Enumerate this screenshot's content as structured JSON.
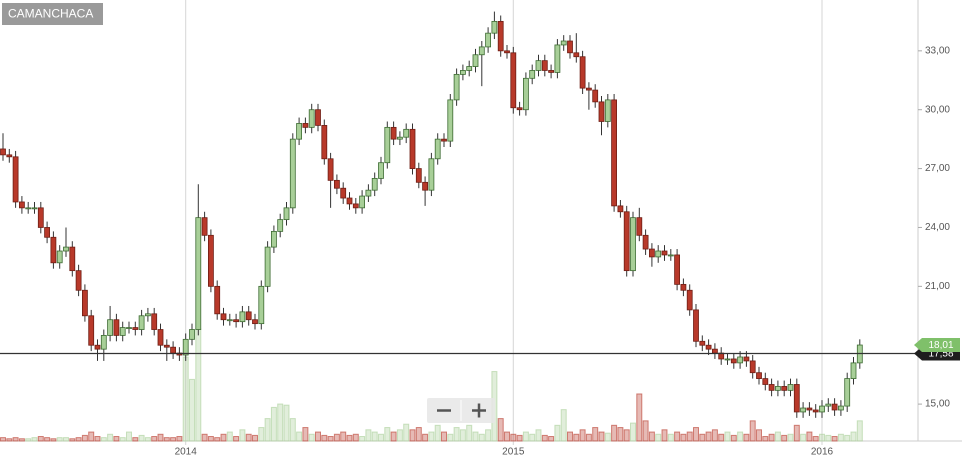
{
  "chart_data": {
    "type": "candlestick",
    "title": "CAMANCHACA",
    "categories": [
      null,
      null,
      null,
      null,
      null,
      null,
      null,
      null,
      null,
      null,
      null,
      null,
      null,
      null,
      null,
      null,
      null,
      null,
      null,
      null,
      null,
      null,
      null,
      null,
      null,
      null,
      null,
      null,
      null,
      "2014",
      null,
      null,
      null,
      null,
      null,
      null,
      null,
      null,
      null,
      null,
      null,
      null,
      null,
      null,
      null,
      null,
      null,
      null,
      null,
      null,
      null,
      null,
      null,
      null,
      null,
      null,
      null,
      null,
      null,
      null,
      null,
      null,
      null,
      null,
      null,
      null,
      null,
      null,
      null,
      null,
      null,
      null,
      null,
      null,
      null,
      null,
      null,
      null,
      null,
      null,
      null,
      "2015",
      null,
      null,
      null,
      null,
      null,
      null,
      null,
      null,
      null,
      null,
      null,
      null,
      null,
      null,
      null,
      null,
      null,
      null,
      null,
      null,
      null,
      null,
      null,
      null,
      null,
      null,
      null,
      null,
      null,
      null,
      null,
      null,
      null,
      null,
      null,
      null,
      null,
      null,
      null,
      null,
      null,
      null,
      null,
      null,
      null,
      null,
      null,
      null,
      "2016",
      null,
      null,
      null,
      null,
      null,
      null
    ],
    "open": [
      28.0,
      27.7,
      27.6,
      25.3,
      25.0,
      25.0,
      25.0,
      24.0,
      23.5,
      22.2,
      22.8,
      23.0,
      21.8,
      20.8,
      19.5,
      18.0,
      17.8,
      18.5,
      19.3,
      18.5,
      18.9,
      18.9,
      18.8,
      19.5,
      19.6,
      18.8,
      18.0,
      17.9,
      17.6,
      17.5,
      18.3,
      18.8,
      24.5,
      23.6,
      21.0,
      19.6,
      19.3,
      19.3,
      19.2,
      19.7,
      19.3,
      19.1,
      21.0,
      23.0,
      23.8,
      24.4,
      25.0,
      28.5,
      29.3,
      29.1,
      30.0,
      29.2,
      27.5,
      26.4,
      26.0,
      25.5,
      25.2,
      25.0,
      25.6,
      25.9,
      26.5,
      27.3,
      29.1,
      28.5,
      28.6,
      29.0,
      27.0,
      26.3,
      25.9,
      27.5,
      28.5,
      28.4,
      30.5,
      31.8,
      32.0,
      32.2,
      32.8,
      33.2,
      33.9,
      34.5,
      33.0,
      32.9,
      30.1,
      30.0,
      31.6,
      32.0,
      32.5,
      32.0,
      31.9,
      33.3,
      33.5,
      32.9,
      32.7,
      31.1,
      31.0,
      30.4,
      29.4,
      30.5,
      25.1,
      24.8,
      21.8,
      24.5,
      23.6,
      22.9,
      22.5,
      22.8,
      22.6,
      22.6,
      21.1,
      20.8,
      19.8,
      18.2,
      18.0,
      17.8,
      17.6,
      17.3,
      17.3,
      17.1,
      17.4,
      17.2,
      16.6,
      16.3,
      16.0,
      15.7,
      15.9,
      15.7,
      16.0,
      14.6,
      14.8,
      14.7,
      14.6,
      14.9,
      15.0,
      14.7,
      14.9,
      16.3,
      17.1
    ],
    "high": [
      28.8,
      28.0,
      27.9,
      25.6,
      25.3,
      25.3,
      25.3,
      24.3,
      23.8,
      23.1,
      24.0,
      23.3,
      22.1,
      21.1,
      19.8,
      18.3,
      18.8,
      20.0,
      19.6,
      19.2,
      19.2,
      19.2,
      19.8,
      19.9,
      19.9,
      19.1,
      18.3,
      18.2,
      17.9,
      18.6,
      19.1,
      26.2,
      24.8,
      23.9,
      21.3,
      19.9,
      19.6,
      19.6,
      20.0,
      20.0,
      19.6,
      21.3,
      23.3,
      24.1,
      24.7,
      25.3,
      28.8,
      29.6,
      29.6,
      30.3,
      30.3,
      29.5,
      27.8,
      26.7,
      26.3,
      25.8,
      25.5,
      25.9,
      26.2,
      26.8,
      27.6,
      29.4,
      29.4,
      28.9,
      29.3,
      29.3,
      27.3,
      26.6,
      27.8,
      28.8,
      28.8,
      30.8,
      32.1,
      32.3,
      32.5,
      33.1,
      33.5,
      34.2,
      35.0,
      34.8,
      33.3,
      33.2,
      30.4,
      31.9,
      32.3,
      32.8,
      32.8,
      32.3,
      33.6,
      33.8,
      33.8,
      33.9,
      33.0,
      31.4,
      31.3,
      30.7,
      30.8,
      30.8,
      25.4,
      25.1,
      24.8,
      25.0,
      23.9,
      23.2,
      23.1,
      23.1,
      22.9,
      22.9,
      21.4,
      21.1,
      20.1,
      18.5,
      18.3,
      18.1,
      17.9,
      17.6,
      17.6,
      17.7,
      17.7,
      17.5,
      16.9,
      16.6,
      16.3,
      16.2,
      16.2,
      16.3,
      16.3,
      15.1,
      15.1,
      15.0,
      15.2,
      15.3,
      15.3,
      15.2,
      16.6,
      17.4,
      18.3
    ],
    "low": [
      27.4,
      27.3,
      25.0,
      24.7,
      24.7,
      24.7,
      23.7,
      23.2,
      21.9,
      21.9,
      22.5,
      21.5,
      20.5,
      19.2,
      17.7,
      17.2,
      17.2,
      18.2,
      18.2,
      18.2,
      18.6,
      18.5,
      18.5,
      19.2,
      18.5,
      17.7,
      17.2,
      17.3,
      17.2,
      17.2,
      18.0,
      18.5,
      23.3,
      20.7,
      19.3,
      19.0,
      19.0,
      18.9,
      18.9,
      19.0,
      18.8,
      18.8,
      20.7,
      22.7,
      23.5,
      24.1,
      24.7,
      28.2,
      28.8,
      28.8,
      28.9,
      27.2,
      25.0,
      25.7,
      25.2,
      24.9,
      24.7,
      24.7,
      25.3,
      25.6,
      26.2,
      27.0,
      28.2,
      28.2,
      28.3,
      26.7,
      26.0,
      25.1,
      25.6,
      27.2,
      28.1,
      28.1,
      30.2,
      31.5,
      31.7,
      31.9,
      31.2,
      32.9,
      33.6,
      32.7,
      32.6,
      29.8,
      29.7,
      29.7,
      31.3,
      31.7,
      31.7,
      31.6,
      31.6,
      33.0,
      32.6,
      32.4,
      30.8,
      30.0,
      30.1,
      28.7,
      29.1,
      24.8,
      24.5,
      21.5,
      21.5,
      23.3,
      22.6,
      22.0,
      22.2,
      22.3,
      22.3,
      20.8,
      20.5,
      19.5,
      17.9,
      17.7,
      17.5,
      17.3,
      17.0,
      17.0,
      16.8,
      16.8,
      16.9,
      16.3,
      16.0,
      15.7,
      15.4,
      15.4,
      15.4,
      15.4,
      14.3,
      14.3,
      14.4,
      14.3,
      14.3,
      14.6,
      14.4,
      14.4,
      14.6,
      16.0,
      16.8
    ],
    "close": [
      27.7,
      27.6,
      25.3,
      25.0,
      25.0,
      25.0,
      24.0,
      23.5,
      22.2,
      22.8,
      23.0,
      21.8,
      20.8,
      19.5,
      18.0,
      17.8,
      18.5,
      19.3,
      18.5,
      18.9,
      18.9,
      18.8,
      19.5,
      19.6,
      18.8,
      18.0,
      17.9,
      17.6,
      17.5,
      18.3,
      18.8,
      24.5,
      23.6,
      21.0,
      19.6,
      19.3,
      19.3,
      19.2,
      19.7,
      19.3,
      19.1,
      21.0,
      23.0,
      23.8,
      24.4,
      25.0,
      28.5,
      29.3,
      29.1,
      30.0,
      29.2,
      27.5,
      26.4,
      26.0,
      25.5,
      25.2,
      25.0,
      25.6,
      25.9,
      26.5,
      27.3,
      29.1,
      28.5,
      28.6,
      29.0,
      27.0,
      26.3,
      25.9,
      27.5,
      28.5,
      28.4,
      30.5,
      31.8,
      32.0,
      32.2,
      32.8,
      33.2,
      33.9,
      34.5,
      33.0,
      32.9,
      30.1,
      30.0,
      31.6,
      32.0,
      32.5,
      32.0,
      31.9,
      33.3,
      33.5,
      32.9,
      32.7,
      31.1,
      31.0,
      30.4,
      29.4,
      30.5,
      25.1,
      24.8,
      21.8,
      24.5,
      23.6,
      22.9,
      22.5,
      22.8,
      22.6,
      22.6,
      21.1,
      20.8,
      19.8,
      18.2,
      18.0,
      17.8,
      17.6,
      17.3,
      17.3,
      17.1,
      17.4,
      17.2,
      16.6,
      16.3,
      16.0,
      15.7,
      15.9,
      15.7,
      16.0,
      14.6,
      14.8,
      14.7,
      14.6,
      14.9,
      15.0,
      14.7,
      14.9,
      16.3,
      17.1,
      18.01
    ],
    "volume": [
      3,
      2,
      3,
      2,
      2,
      3,
      4,
      3,
      2,
      3,
      3,
      2,
      3,
      5,
      8,
      4,
      3,
      6,
      4,
      3,
      8,
      3,
      5,
      3,
      4,
      6,
      3,
      3,
      4,
      75,
      55,
      100,
      6,
      4,
      3,
      6,
      8,
      4,
      10,
      6,
      5,
      12,
      20,
      30,
      33,
      32,
      20,
      8,
      12,
      6,
      8,
      5,
      4,
      6,
      8,
      5,
      6,
      4,
      10,
      8,
      6,
      12,
      8,
      10,
      15,
      10,
      12,
      6,
      8,
      14,
      8,
      6,
      12,
      10,
      14,
      8,
      6,
      10,
      62,
      20,
      8,
      6,
      5,
      8,
      6,
      10,
      5,
      4,
      14,
      28,
      8,
      6,
      10,
      6,
      12,
      8,
      7,
      14,
      12,
      10,
      16,
      42,
      18,
      8,
      6,
      10,
      6,
      8,
      6,
      8,
      12,
      6,
      8,
      10,
      6,
      8,
      5,
      8,
      6,
      18,
      10,
      4,
      6,
      8,
      5,
      6,
      14,
      6,
      8,
      4,
      6,
      5,
      4,
      6,
      5,
      8,
      18
    ],
    "volume_lim": [
      0,
      100
    ],
    "up_color": "#a8cf98",
    "down_color": "#b8392a",
    "ylim": [
      13.12,
      35.59
    ],
    "yticks": [
      {
        "value": 15,
        "label": "15,00"
      },
      {
        "value": 21,
        "label": "21,00"
      },
      {
        "value": 24,
        "label": "24,00"
      },
      {
        "value": 27,
        "label": "27,00"
      },
      {
        "value": 30,
        "label": "30,00"
      },
      {
        "value": 33,
        "label": "33,00"
      }
    ],
    "last_price": {
      "value": 18.01,
      "label": "18,01"
    },
    "reference_line": {
      "value": 17.58,
      "label": "17,58"
    }
  }
}
